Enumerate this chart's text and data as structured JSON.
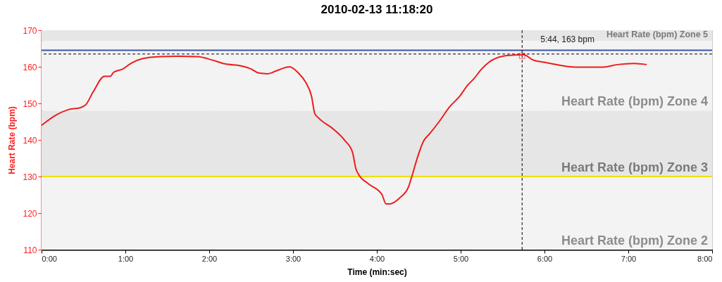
{
  "chart_data": {
    "type": "line",
    "title": "2010-02-13 11:18:20",
    "xlabel": "Time (min:sec)",
    "ylabel": "Heart Rate (bpm)",
    "xlim": [
      0,
      8
    ],
    "xticks": [
      {
        "value": 0,
        "label": "0:00"
      },
      {
        "value": 1,
        "label": "1:00"
      },
      {
        "value": 2,
        "label": "2:00"
      },
      {
        "value": 3,
        "label": "3:00"
      },
      {
        "value": 4,
        "label": "4:00"
      },
      {
        "value": 5,
        "label": "5:00"
      },
      {
        "value": 6,
        "label": "6:00"
      },
      {
        "value": 7,
        "label": "7:00"
      },
      {
        "value": 8,
        "label": "8:00"
      }
    ],
    "ylim": [
      110,
      170
    ],
    "yticks": [
      110,
      120,
      130,
      140,
      150,
      160,
      170
    ],
    "grid": true,
    "marker": "none",
    "line_style": "solid",
    "series": [
      {
        "color": "#ee1c1c",
        "x": [
          0,
          0.18,
          0.32,
          0.46,
          0.53,
          0.62,
          0.75,
          0.82,
          0.86,
          0.97,
          1.07,
          1.2,
          1.41,
          1.61,
          1.86,
          2.03,
          2.19,
          2.39,
          2.5,
          2.59,
          2.7,
          2.81,
          2.96,
          3.06,
          3.15,
          3.22,
          3.26,
          3.31,
          3.48,
          3.62,
          3.71,
          3.75,
          3.79,
          3.9,
          4.06,
          4.11,
          4.15,
          4.27,
          4.38,
          4.42,
          4.49,
          4.56,
          4.63,
          4.74,
          4.87,
          4.99,
          5.08,
          5.16,
          5.25,
          5.34,
          5.5,
          5.64,
          5.75,
          5.86,
          6.03,
          6.39,
          6.7,
          6.87,
          7.07,
          7.22
        ],
        "values": [
          144.0,
          146.9,
          148.3,
          148.8,
          149.7,
          153.3,
          157.4,
          157.4,
          158.5,
          159.4,
          161,
          162.2,
          162.8,
          162.9,
          162.8,
          161.9,
          160.8,
          160.2,
          159.4,
          158.3,
          158.1,
          159,
          160,
          158.4,
          155.8,
          152,
          147.2,
          145.9,
          143,
          139.8,
          136.6,
          132.1,
          130.3,
          128,
          125.1,
          122.5,
          122.5,
          124.1,
          127.3,
          130.2,
          135.6,
          139.8,
          141.7,
          144.9,
          149.1,
          152,
          154.9,
          156.8,
          159.4,
          161.3,
          162.9,
          163.2,
          163.3,
          161.9,
          161.1,
          159.9,
          159.9,
          160.6,
          160.9,
          160.6
        ]
      }
    ],
    "bands": [
      {
        "axis": "y",
        "from": 167,
        "to": 170,
        "label": "Heart Rate (bpm) Zone 5",
        "color": "#e6e6e6"
      },
      {
        "axis": "y",
        "from": 148,
        "to": 167,
        "label": "Heart Rate (bpm) Zone 4",
        "color": "#f3f3f3"
      },
      {
        "axis": "y",
        "from": 130,
        "to": 148,
        "label": "Heart Rate (bpm) Zone 3",
        "color": "#e6e6e6"
      },
      {
        "axis": "y",
        "from": 110,
        "to": 130,
        "label": "Heart Rate (bpm) Zone 2",
        "color": "#f3f3f3"
      }
    ],
    "ref_lines": [
      {
        "axis": "y",
        "value": 164.5,
        "color": "#3a56a8",
        "line_style": "solid"
      },
      {
        "axis": "y",
        "value": 130,
        "color": "#f0e000",
        "line_style": "solid"
      },
      {
        "axis": "x",
        "value": 5.733,
        "color": "#000000",
        "line_style": "dashed"
      },
      {
        "axis": "y",
        "value": 163.5,
        "color": "#000000",
        "line_style": "dashed"
      }
    ],
    "annotations": [
      {
        "text": "5:44, 163 bpm",
        "x": 5.733,
        "y": 163
      }
    ]
  }
}
